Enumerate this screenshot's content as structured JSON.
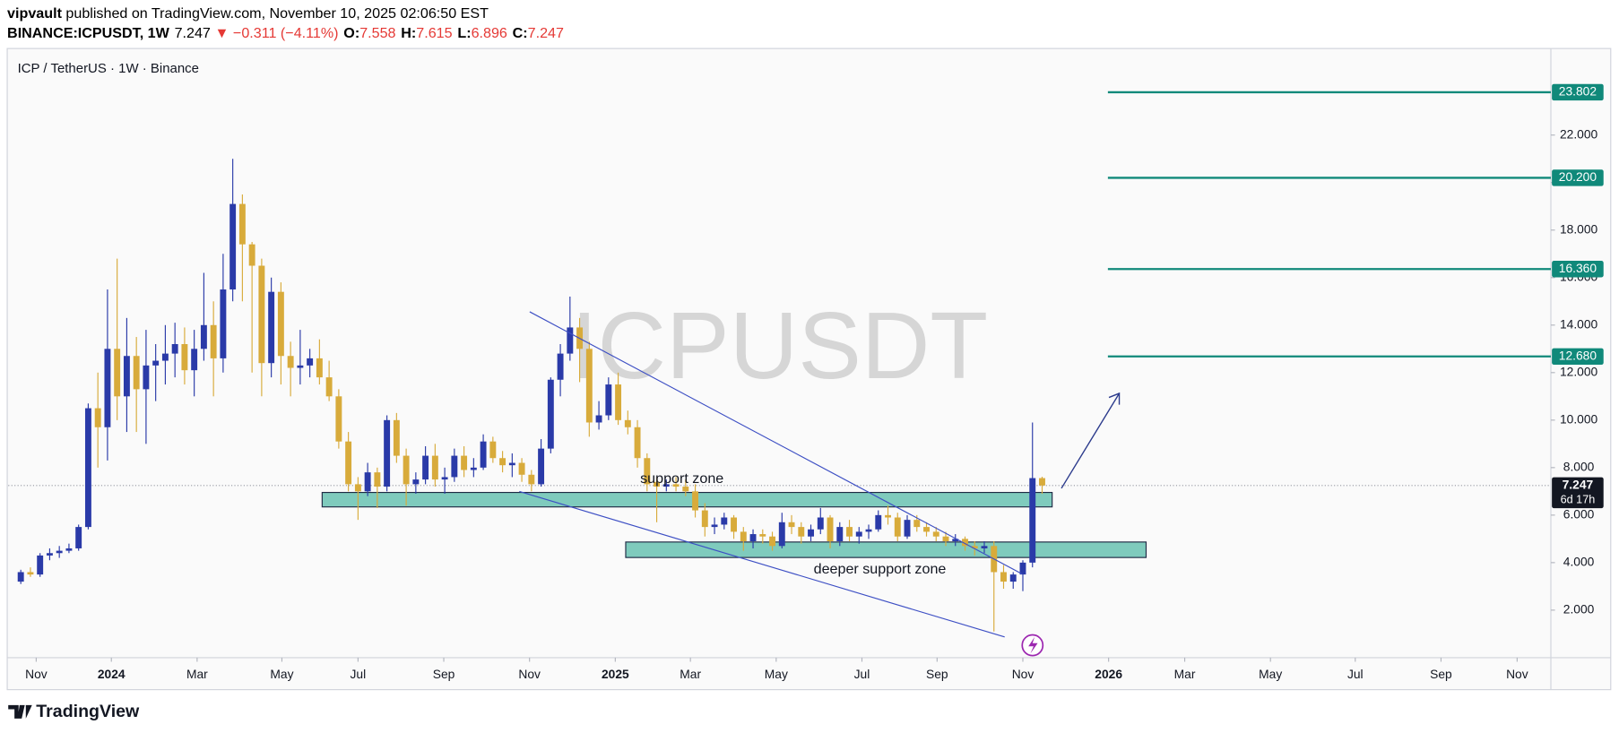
{
  "header": {
    "publisher": "vipvault",
    "published": " published on TradingView.com, November 10, 2025 02:06:50 EST",
    "symbol": "BINANCE:ICPUSDT, 1W",
    "last": "7.247",
    "change": "▼ −0.311 (−4.11%)",
    "ohlc": [
      {
        "label": "O:",
        "value": "7.558"
      },
      {
        "label": "H:",
        "value": "7.615"
      },
      {
        "label": "L:",
        "value": "6.896"
      },
      {
        "label": "C:",
        "value": "7.247"
      }
    ]
  },
  "chart_data": {
    "type": "candlestick",
    "title": "ICP / TetherUS · 1W · Binance",
    "watermark": "ICPUSDT",
    "up_color": "#2a3aa8",
    "down_color": "#d8ab3b",
    "candles": [
      [
        3.2,
        3.7,
        3.1,
        3.6
      ],
      [
        3.6,
        3.8,
        3.4,
        3.5
      ],
      [
        3.5,
        4.4,
        3.4,
        4.3
      ],
      [
        4.3,
        4.6,
        4.1,
        4.4
      ],
      [
        4.4,
        4.7,
        4.2,
        4.5
      ],
      [
        4.5,
        4.8,
        4.4,
        4.6
      ],
      [
        4.6,
        5.6,
        4.5,
        5.5
      ],
      [
        5.5,
        10.7,
        5.4,
        10.5
      ],
      [
        10.5,
        12.0,
        8.0,
        9.7
      ],
      [
        9.7,
        15.5,
        8.3,
        13.0
      ],
      [
        13.0,
        16.8,
        10.0,
        11.0
      ],
      [
        11.0,
        14.3,
        9.5,
        12.7
      ],
      [
        12.7,
        13.5,
        9.5,
        11.3
      ],
      [
        11.3,
        13.8,
        9.0,
        12.3
      ],
      [
        12.3,
        13.2,
        10.8,
        12.5
      ],
      [
        12.5,
        14.0,
        11.5,
        12.8
      ],
      [
        12.8,
        14.1,
        11.8,
        13.2
      ],
      [
        13.2,
        13.9,
        11.5,
        12.1
      ],
      [
        12.1,
        13.8,
        11.0,
        13.0
      ],
      [
        13.0,
        16.2,
        12.5,
        14.0
      ],
      [
        14.0,
        15.0,
        11.0,
        12.6
      ],
      [
        12.6,
        17.0,
        12.0,
        15.5
      ],
      [
        15.5,
        21.0,
        15.0,
        19.1
      ],
      [
        19.1,
        19.5,
        15.0,
        17.4
      ],
      [
        17.4,
        17.5,
        12.0,
        16.5
      ],
      [
        16.5,
        16.8,
        11.0,
        12.4
      ],
      [
        12.4,
        16.0,
        11.8,
        15.4
      ],
      [
        15.4,
        15.8,
        11.5,
        12.7
      ],
      [
        12.7,
        13.3,
        11.0,
        12.2
      ],
      [
        12.2,
        13.8,
        11.5,
        12.3
      ],
      [
        12.3,
        13.0,
        11.8,
        12.6
      ],
      [
        12.6,
        13.4,
        11.5,
        11.8
      ],
      [
        11.8,
        12.5,
        10.8,
        11.0
      ],
      [
        11.0,
        11.3,
        8.8,
        9.1
      ],
      [
        9.1,
        9.5,
        7.0,
        7.3
      ],
      [
        7.3,
        7.6,
        5.8,
        7.0
      ],
      [
        7.0,
        8.2,
        6.8,
        7.8
      ],
      [
        7.8,
        8.0,
        6.3,
        7.2
      ],
      [
        7.2,
        10.2,
        7.0,
        10.0
      ],
      [
        10.0,
        10.3,
        8.2,
        8.5
      ],
      [
        8.5,
        8.8,
        6.4,
        7.3
      ],
      [
        7.3,
        7.8,
        6.9,
        7.5
      ],
      [
        7.5,
        8.9,
        7.3,
        8.5
      ],
      [
        8.5,
        9.0,
        7.2,
        7.5
      ],
      [
        7.5,
        8.0,
        6.9,
        7.6
      ],
      [
        7.6,
        8.8,
        7.4,
        8.5
      ],
      [
        8.5,
        8.9,
        7.6,
        7.9
      ],
      [
        7.9,
        8.4,
        7.6,
        8.0
      ],
      [
        8.0,
        9.4,
        7.9,
        9.1
      ],
      [
        9.1,
        9.3,
        8.2,
        8.4
      ],
      [
        8.4,
        8.7,
        7.8,
        8.1
      ],
      [
        8.1,
        8.6,
        7.6,
        8.2
      ],
      [
        8.2,
        8.4,
        7.4,
        7.7
      ],
      [
        7.7,
        7.9,
        7.0,
        7.3
      ],
      [
        7.3,
        9.2,
        7.2,
        8.8
      ],
      [
        8.8,
        11.8,
        8.6,
        11.7
      ],
      [
        11.7,
        13.2,
        11.0,
        12.8
      ],
      [
        12.8,
        15.2,
        12.5,
        13.9
      ],
      [
        13.9,
        14.3,
        11.6,
        13.0
      ],
      [
        13.0,
        13.3,
        9.3,
        9.9
      ],
      [
        9.9,
        10.8,
        9.6,
        10.2
      ],
      [
        10.2,
        11.8,
        10.0,
        11.5
      ],
      [
        11.5,
        12.0,
        9.8,
        10.0
      ],
      [
        10.0,
        10.4,
        9.4,
        9.7
      ],
      [
        9.7,
        10.0,
        8.0,
        8.4
      ],
      [
        8.4,
        8.6,
        7.0,
        7.3
      ],
      [
        7.4,
        7.6,
        5.7,
        7.2
      ],
      [
        7.2,
        7.5,
        7.0,
        7.3
      ],
      [
        7.3,
        7.6,
        7.0,
        7.2
      ],
      [
        7.2,
        7.5,
        6.8,
        7.0
      ],
      [
        7.0,
        7.3,
        5.9,
        6.2
      ],
      [
        6.2,
        6.5,
        5.1,
        5.5
      ],
      [
        5.5,
        5.9,
        5.2,
        5.6
      ],
      [
        5.6,
        6.1,
        5.4,
        5.9
      ],
      [
        5.9,
        6.0,
        5.0,
        5.3
      ],
      [
        5.3,
        5.5,
        4.5,
        4.9
      ],
      [
        4.9,
        5.4,
        4.6,
        5.2
      ],
      [
        5.2,
        5.4,
        4.8,
        5.1
      ],
      [
        5.1,
        5.3,
        4.5,
        4.7
      ],
      [
        4.7,
        6.1,
        4.6,
        5.7
      ],
      [
        5.7,
        6.0,
        5.2,
        5.5
      ],
      [
        5.5,
        5.7,
        4.8,
        5.1
      ],
      [
        5.1,
        5.6,
        4.9,
        5.4
      ],
      [
        5.4,
        6.3,
        5.2,
        5.9
      ],
      [
        5.9,
        6.0,
        4.6,
        4.9
      ],
      [
        4.9,
        5.7,
        4.7,
        5.5
      ],
      [
        5.5,
        5.8,
        4.9,
        5.1
      ],
      [
        5.1,
        5.5,
        4.8,
        5.3
      ],
      [
        5.3,
        5.6,
        5.0,
        5.4
      ],
      [
        5.4,
        6.2,
        5.3,
        6.0
      ],
      [
        6.0,
        6.4,
        5.6,
        5.9
      ],
      [
        5.9,
        6.1,
        4.9,
        5.1
      ],
      [
        5.1,
        6.0,
        5.0,
        5.8
      ],
      [
        5.8,
        6.0,
        5.3,
        5.5
      ],
      [
        5.5,
        5.7,
        5.1,
        5.3
      ],
      [
        5.3,
        5.5,
        4.9,
        5.1
      ],
      [
        5.1,
        5.3,
        4.7,
        4.9
      ],
      [
        4.9,
        5.2,
        4.7,
        5.0
      ],
      [
        5.0,
        5.1,
        4.5,
        4.7
      ],
      [
        4.7,
        4.9,
        4.3,
        4.6
      ],
      [
        4.6,
        4.9,
        4.4,
        4.7
      ],
      [
        4.7,
        4.9,
        1.1,
        3.6
      ],
      [
        3.6,
        3.9,
        2.9,
        3.2
      ],
      [
        3.2,
        3.6,
        2.9,
        3.5
      ],
      [
        3.5,
        4.1,
        2.8,
        4.0
      ],
      [
        4.0,
        9.9,
        3.8,
        7.558
      ],
      [
        7.558,
        7.615,
        6.896,
        7.247
      ]
    ],
    "xlim": [
      -1.3,
      158.8
    ],
    "xticks": [
      {
        "value": 1.6,
        "label": "Nov"
      },
      {
        "value": 9.4,
        "label": "2024"
      },
      {
        "value": 18.3,
        "label": "Mar"
      },
      {
        "value": 27.1,
        "label": "May"
      },
      {
        "value": 35.0,
        "label": "Jul"
      },
      {
        "value": 43.9,
        "label": "Sep"
      },
      {
        "value": 52.8,
        "label": "Nov"
      },
      {
        "value": 61.7,
        "label": "2025"
      },
      {
        "value": 69.5,
        "label": "Mar"
      },
      {
        "value": 78.4,
        "label": "May"
      },
      {
        "value": 87.3,
        "label": "Jul"
      },
      {
        "value": 95.1,
        "label": "Sep"
      },
      {
        "value": 104.0,
        "label": "Nov"
      },
      {
        "value": 112.9,
        "label": "2026"
      },
      {
        "value": 120.8,
        "label": "Mar"
      },
      {
        "value": 129.7,
        "label": "May"
      },
      {
        "value": 138.5,
        "label": "Jul"
      },
      {
        "value": 147.4,
        "label": "Sep"
      },
      {
        "value": 155.3,
        "label": "Nov"
      }
    ],
    "ylim": [
      0,
      25.6
    ],
    "yticks": [
      {
        "value": 2,
        "label": "2.000"
      },
      {
        "value": 4,
        "label": "4.000"
      },
      {
        "value": 6,
        "label": "6.000"
      },
      {
        "value": 8,
        "label": "8.000"
      },
      {
        "value": 10,
        "label": "10.000"
      },
      {
        "value": 12,
        "label": "12.000"
      },
      {
        "value": 14,
        "label": "14.000"
      },
      {
        "value": 16,
        "label": "16.000"
      },
      {
        "value": 18,
        "label": "18.000"
      },
      {
        "value": 20,
        "label": "20.000"
      },
      {
        "value": 22,
        "label": "22.000"
      }
    ],
    "last": {
      "value": 7.247,
      "label": "7.247"
    },
    "countdown": "6d 17h",
    "level_color": "#10897a",
    "levels": [
      {
        "value": 23.802,
        "label": "23.802"
      },
      {
        "value": 20.2,
        "label": "20.200"
      },
      {
        "value": 16.36,
        "label": "16.360"
      },
      {
        "value": 12.68,
        "label": "12.680"
      }
    ],
    "annotations": [
      "support zone",
      "deeper support zone"
    ]
  },
  "footer": {
    "brand": "TradingView"
  }
}
